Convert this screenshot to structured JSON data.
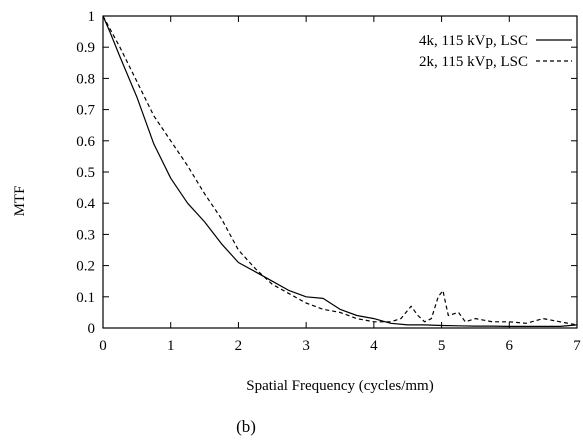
{
  "chart_data": {
    "type": "line",
    "title": "",
    "xlabel": "Spatial Frequency (cycles/mm)",
    "ylabel": "MTF",
    "caption": "(b)",
    "xlim": [
      0,
      7
    ],
    "ylim": [
      0,
      1
    ],
    "xticks": [
      "0",
      "1",
      "2",
      "3",
      "4",
      "5",
      "6",
      "7"
    ],
    "yticks": [
      "0",
      "0.1",
      "0.2",
      "0.3",
      "0.4",
      "0.5",
      "0.6",
      "0.7",
      "0.8",
      "0.9",
      "1"
    ],
    "grid": false,
    "legend_position": "top-right",
    "series": [
      {
        "name": "4k, 115 kVp, LSC",
        "style": "solid",
        "x": [
          0,
          0.1,
          0.25,
          0.5,
          0.75,
          1.0,
          1.25,
          1.5,
          1.75,
          2.0,
          2.25,
          2.5,
          2.75,
          3.0,
          3.25,
          3.5,
          3.75,
          4.0,
          4.25,
          4.5,
          4.75,
          5.0,
          5.25,
          5.5,
          5.75,
          6.0,
          6.25,
          6.5,
          6.75,
          7.0
        ],
        "y": [
          1.0,
          0.95,
          0.87,
          0.74,
          0.59,
          0.48,
          0.4,
          0.34,
          0.27,
          0.21,
          0.18,
          0.15,
          0.12,
          0.1,
          0.095,
          0.06,
          0.04,
          0.03,
          0.015,
          0.01,
          0.01,
          0.008,
          0.007,
          0.006,
          0.006,
          0.005,
          0.005,
          0.005,
          0.005,
          0.01
        ]
      },
      {
        "name": "2k, 115 kVp, LSC",
        "style": "dashed",
        "x": [
          0,
          0.1,
          0.25,
          0.5,
          0.75,
          1.0,
          1.25,
          1.5,
          1.75,
          2.0,
          2.25,
          2.5,
          2.75,
          3.0,
          3.25,
          3.5,
          3.75,
          4.0,
          4.25,
          4.4,
          4.55,
          4.65,
          4.75,
          4.85,
          4.95,
          5.02,
          5.1,
          5.25,
          5.35,
          5.5,
          5.75,
          6.0,
          6.25,
          6.5,
          6.75,
          7.0
        ],
        "y": [
          1.0,
          0.96,
          0.9,
          0.79,
          0.68,
          0.6,
          0.52,
          0.43,
          0.35,
          0.25,
          0.19,
          0.14,
          0.11,
          0.08,
          0.06,
          0.05,
          0.03,
          0.02,
          0.02,
          0.03,
          0.07,
          0.04,
          0.02,
          0.03,
          0.1,
          0.12,
          0.04,
          0.05,
          0.02,
          0.03,
          0.02,
          0.02,
          0.015,
          0.03,
          0.02,
          0.01
        ]
      }
    ]
  }
}
